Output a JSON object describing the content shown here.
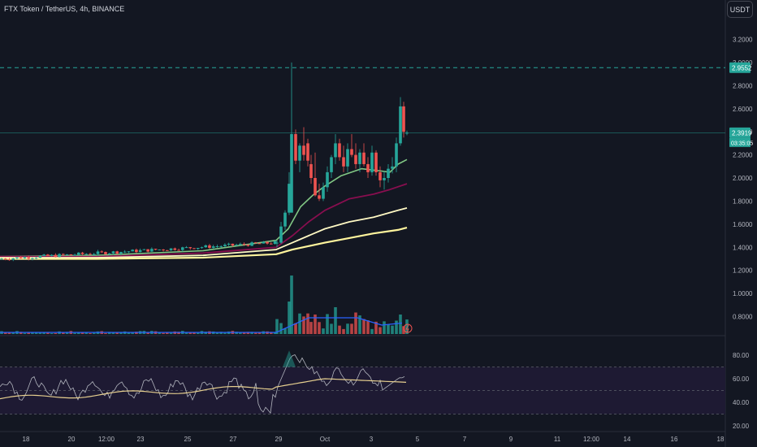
{
  "title": "FTX Token / TetherUS, 4h, BINANCE",
  "currency": "USDT",
  "colors": {
    "background": "#131722",
    "up": "#26a69a",
    "down": "#ef5350",
    "ema_fast": "#81c784",
    "ema_mid": "#880e4f",
    "ema_slow": "#fff9c4",
    "ema_slowest": "#fff59d",
    "volume_ma": "#2962ff",
    "rsi": "#b2b5be",
    "rsi_ma": "#e6cf8f",
    "rsi_band": "#1e1a33",
    "target_line": "#26a69a"
  },
  "chart_data": {
    "type": "candlestick",
    "symbol": "FTX Token / TetherUS",
    "interval": "4h",
    "exchange": "BINANCE",
    "y_ticks": [
      "3.2000",
      "3.0000",
      "2.8000",
      "2.6000",
      "2.4000",
      "2.2000",
      "2.0000",
      "1.8000",
      "1.6000",
      "1.4000",
      "1.2000",
      "1.0000",
      "0.8000"
    ],
    "ylim": [
      0.66,
      3.35
    ],
    "x_ticks": [
      "18",
      "20",
      "12:00",
      "23",
      "25",
      "27",
      "29",
      "Oct",
      "3",
      "5",
      "7",
      "9",
      "11",
      "12:00",
      "14",
      "16",
      "18"
    ],
    "price_labels": {
      "target": "2.9552",
      "last": "2.3919",
      "countdown": "03:35:05"
    },
    "target_level": 2.9552,
    "last_price": 2.3919,
    "rsi_ticks": [
      "80.00",
      "60.00",
      "40.00",
      "20.00"
    ],
    "rsi_ylim": [
      15,
      95
    ],
    "rsi_bands": [
      70,
      50,
      30
    ],
    "candles_sample": [
      {
        "t": "Sep 29 00:00",
        "o": 1.44,
        "h": 1.72,
        "l": 1.42,
        "c": 1.7
      },
      {
        "t": "Sep 29 12:00",
        "o": 1.7,
        "h": 3.0,
        "l": 1.7,
        "c": 2.38
      },
      {
        "t": "Sep 30 00:00",
        "o": 2.38,
        "h": 2.44,
        "l": 2.1,
        "c": 2.3
      },
      {
        "t": "Oct 1 00:00",
        "o": 1.95,
        "h": 2.1,
        "l": 1.8,
        "c": 1.82
      },
      {
        "t": "Oct 2 04:00",
        "o": 2.3,
        "h": 2.38,
        "l": 2.05,
        "c": 2.12
      },
      {
        "t": "Oct 3 20:00",
        "o": 2.22,
        "h": 2.6,
        "l": 2.2,
        "c": 2.56
      },
      {
        "t": "Oct 4 00:00",
        "o": 2.56,
        "h": 2.7,
        "l": 2.35,
        "c": 2.3919
      }
    ]
  }
}
